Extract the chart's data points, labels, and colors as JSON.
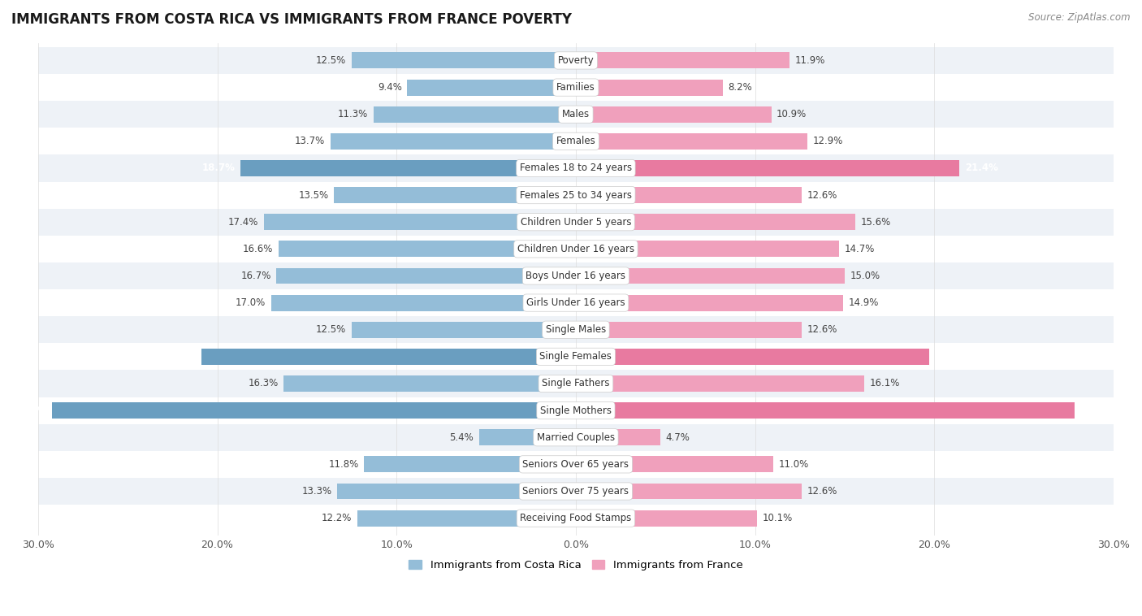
{
  "title": "IMMIGRANTS FROM COSTA RICA VS IMMIGRANTS FROM FRANCE POVERTY",
  "source": "Source: ZipAtlas.com",
  "categories": [
    "Poverty",
    "Families",
    "Males",
    "Females",
    "Females 18 to 24 years",
    "Females 25 to 34 years",
    "Children Under 5 years",
    "Children Under 16 years",
    "Boys Under 16 years",
    "Girls Under 16 years",
    "Single Males",
    "Single Females",
    "Single Fathers",
    "Single Mothers",
    "Married Couples",
    "Seniors Over 65 years",
    "Seniors Over 75 years",
    "Receiving Food Stamps"
  ],
  "costa_rica": [
    12.5,
    9.4,
    11.3,
    13.7,
    18.7,
    13.5,
    17.4,
    16.6,
    16.7,
    17.0,
    12.5,
    20.9,
    16.3,
    29.2,
    5.4,
    11.8,
    13.3,
    12.2
  ],
  "france": [
    11.9,
    8.2,
    10.9,
    12.9,
    21.4,
    12.6,
    15.6,
    14.7,
    15.0,
    14.9,
    12.6,
    19.7,
    16.1,
    27.8,
    4.7,
    11.0,
    12.6,
    10.1
  ],
  "costa_rica_color": "#94bdd8",
  "france_color": "#f0a0bc",
  "highlight_indices": [
    4,
    11,
    13
  ],
  "highlight_cr_color": "#6a9ec0",
  "highlight_fr_color": "#e87aa0",
  "axis_max": 30.0,
  "legend_cr": "Immigrants from Costa Rica",
  "legend_fr": "Immigrants from France",
  "background_color": "#ffffff",
  "row_even_color": "#eef2f7",
  "row_odd_color": "#ffffff",
  "xlabel_color": "#555555",
  "label_color": "#444444",
  "title_color": "#1a1a1a"
}
